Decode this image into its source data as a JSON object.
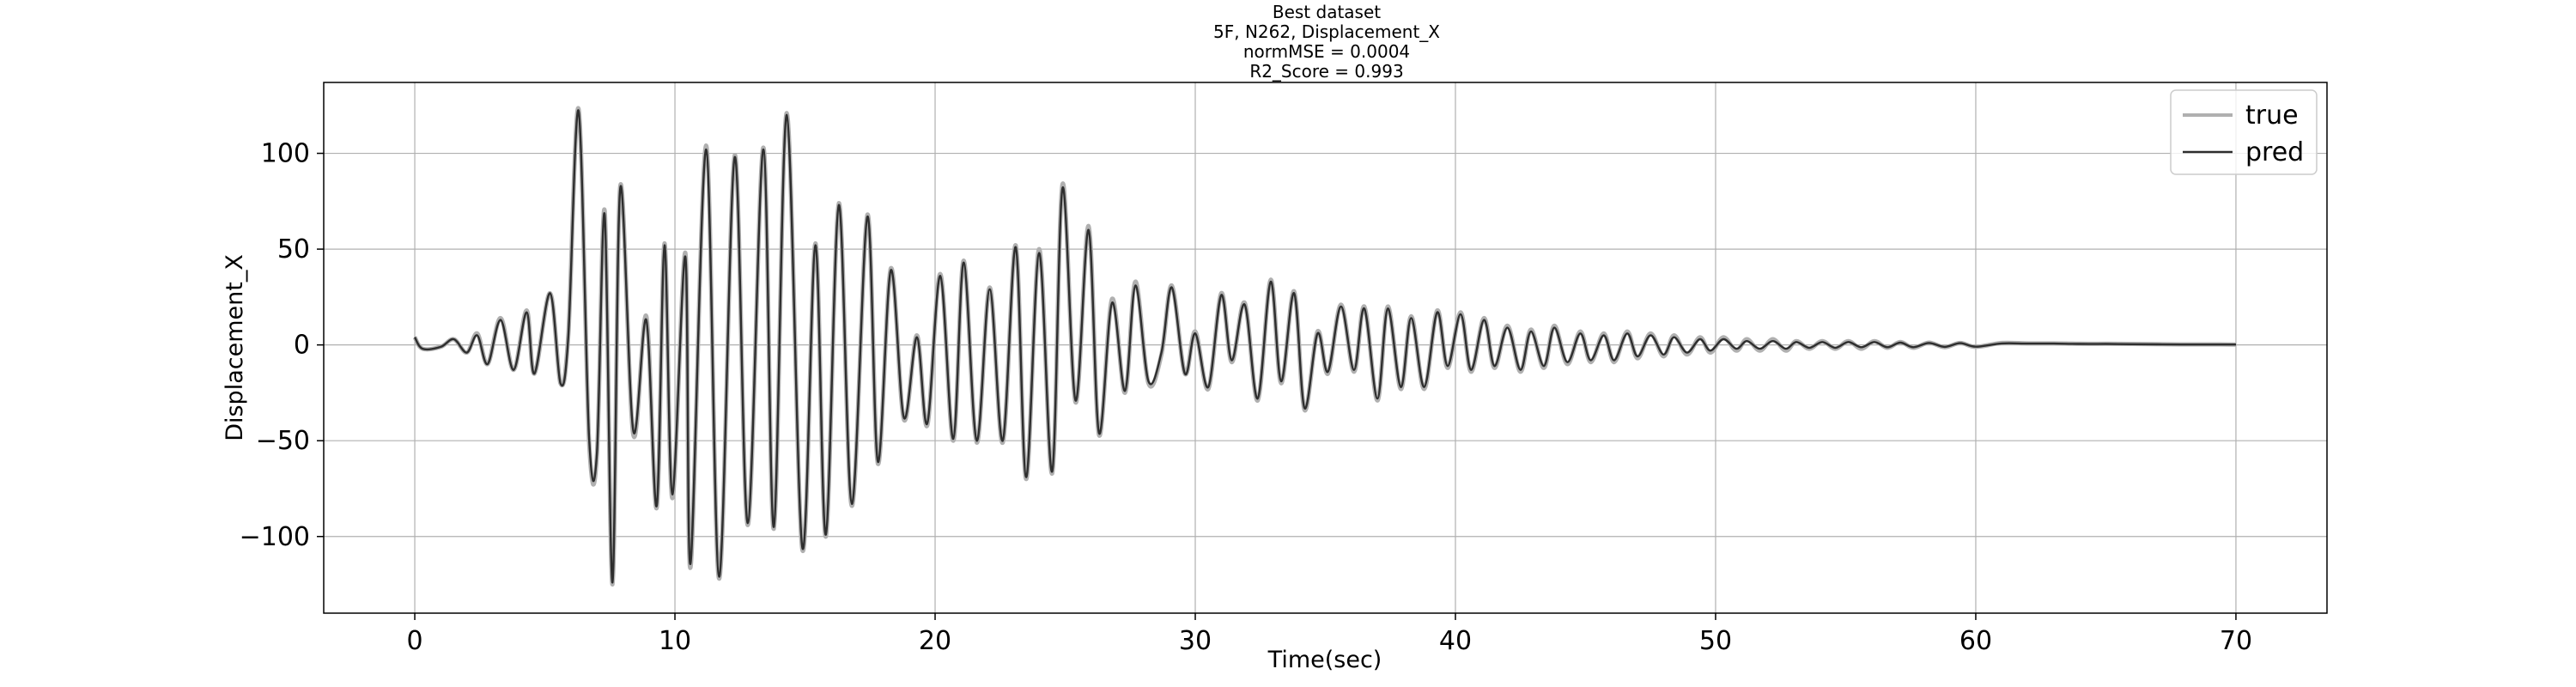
{
  "chart_data": {
    "type": "line",
    "title_lines": [
      "Best dataset",
      "5F, N262, Displacement_X",
      "normMSE = 0.0004",
      "R2_Score = 0.993"
    ],
    "xlabel": "Time(sec)",
    "ylabel": "Displacement_X",
    "xlim": [
      -3.5,
      73.5
    ],
    "ylim": [
      -140,
      137
    ],
    "xticks": [
      0,
      10,
      20,
      30,
      40,
      50,
      60,
      70
    ],
    "xtick_labels": [
      "0",
      "10",
      "20",
      "30",
      "40",
      "50",
      "60",
      "70"
    ],
    "yticks": [
      -100,
      -50,
      0,
      50,
      100
    ],
    "ytick_labels": [
      "−100",
      "−50",
      "0",
      "50",
      "100"
    ],
    "grid": true,
    "legend_position": "top-right",
    "series": [
      {
        "name": "true",
        "color": "#b0b0b0",
        "x": [
          0.0,
          0.3,
          1.0,
          1.5,
          2.0,
          2.4,
          2.8,
          3.3,
          3.8,
          4.3,
          4.6,
          5.2,
          5.6,
          5.9,
          6.3,
          6.7,
          7.0,
          7.3,
          7.6,
          7.9,
          8.4,
          8.9,
          9.3,
          9.6,
          9.9,
          10.4,
          10.6,
          11.2,
          11.7,
          12.3,
          12.8,
          13.4,
          13.8,
          14.3,
          14.9,
          15.4,
          15.8,
          16.3,
          16.8,
          17.4,
          17.8,
          18.3,
          18.8,
          19.3,
          19.7,
          20.2,
          20.7,
          21.1,
          21.6,
          22.1,
          22.6,
          23.1,
          23.5,
          24.0,
          24.5,
          24.9,
          25.4,
          25.9,
          26.3,
          26.8,
          27.3,
          27.7,
          28.2,
          28.7,
          29.1,
          29.6,
          30.0,
          30.5,
          31.0,
          31.4,
          31.9,
          32.4,
          32.9,
          33.3,
          33.8,
          34.2,
          34.7,
          35.1,
          35.6,
          36.1,
          36.5,
          37.0,
          37.4,
          37.9,
          38.3,
          38.8,
          39.3,
          39.7,
          40.2,
          40.6,
          41.1,
          41.5,
          42.0,
          42.5,
          42.9,
          43.4,
          43.8,
          44.3,
          44.8,
          45.2,
          45.7,
          46.1,
          46.6,
          47.0,
          47.5,
          48.0,
          48.4,
          48.9,
          49.4,
          49.8,
          50.3,
          50.8,
          51.2,
          51.7,
          52.2,
          52.7,
          53.1,
          53.6,
          54.1,
          54.6,
          55.1,
          55.6,
          56.1,
          56.6,
          57.1,
          57.6,
          58.2,
          58.8,
          59.4,
          60.0,
          61.0,
          62.0,
          63.0,
          64.0,
          65.0,
          66.0,
          67.0,
          68.0,
          69.0,
          70.0
        ],
        "values": [
          4,
          -2,
          -1,
          3,
          -4,
          6,
          -10,
          14,
          -13,
          18,
          -15,
          27,
          -20,
          5,
          123,
          -50,
          -58,
          70,
          -125,
          83,
          -47,
          15,
          -85,
          53,
          -80,
          48,
          -116,
          104,
          -122,
          99,
          -94,
          103,
          -96,
          121,
          -107,
          53,
          -100,
          74,
          -84,
          68,
          -62,
          40,
          -39,
          5,
          -42,
          37,
          -50,
          44,
          -51,
          30,
          -51,
          52,
          -70,
          50,
          -67,
          84,
          -30,
          62,
          -47,
          24,
          -25,
          33,
          -20,
          -5,
          31,
          -15,
          7,
          -23,
          27,
          -9,
          22,
          -29,
          34,
          -20,
          28,
          -34,
          7,
          -15,
          21,
          -14,
          20,
          -29,
          20,
          -23,
          15,
          -23,
          18,
          -12,
          17,
          -14,
          14,
          -12,
          10,
          -14,
          8,
          -12,
          10,
          -10,
          7,
          -9,
          6,
          -9,
          7,
          -7,
          6,
          -6,
          5,
          -5,
          4,
          -4,
          4,
          -3,
          3,
          -3,
          3,
          -3,
          2,
          -2,
          2,
          -2,
          2,
          -2,
          2,
          -1.5,
          1.5,
          -1.5,
          1.2,
          -1.2,
          1.0,
          -1.0,
          1,
          0.8,
          0.8,
          0.6,
          0.6,
          0.5,
          0.4,
          0.3,
          0.3,
          0.2
        ]
      },
      {
        "name": "pred",
        "color": "#2e2e2e",
        "x": [
          0.0,
          0.3,
          1.0,
          1.5,
          2.0,
          2.4,
          2.8,
          3.3,
          3.8,
          4.3,
          4.6,
          5.2,
          5.6,
          5.9,
          6.3,
          6.7,
          7.0,
          7.3,
          7.6,
          7.9,
          8.4,
          8.9,
          9.3,
          9.6,
          9.9,
          10.4,
          10.6,
          11.2,
          11.7,
          12.3,
          12.8,
          13.4,
          13.8,
          14.3,
          14.9,
          15.4,
          15.8,
          16.3,
          16.8,
          17.4,
          17.8,
          18.3,
          18.8,
          19.3,
          19.7,
          20.2,
          20.7,
          21.1,
          21.6,
          22.1,
          22.6,
          23.1,
          23.5,
          24.0,
          24.5,
          24.9,
          25.4,
          25.9,
          26.3,
          26.8,
          27.3,
          27.7,
          28.2,
          28.7,
          29.1,
          29.6,
          30.0,
          30.5,
          31.0,
          31.4,
          31.9,
          32.4,
          32.9,
          33.3,
          33.8,
          34.2,
          34.7,
          35.1,
          35.6,
          36.1,
          36.5,
          37.0,
          37.4,
          37.9,
          38.3,
          38.8,
          39.3,
          39.7,
          40.2,
          40.6,
          41.1,
          41.5,
          42.0,
          42.5,
          42.9,
          43.4,
          43.8,
          44.3,
          44.8,
          45.2,
          45.7,
          46.1,
          46.6,
          47.0,
          47.5,
          48.0,
          48.4,
          48.9,
          49.4,
          49.8,
          50.3,
          50.8,
          51.2,
          51.7,
          52.2,
          52.7,
          53.1,
          53.6,
          54.1,
          54.6,
          55.1,
          55.6,
          56.1,
          56.6,
          57.1,
          57.6,
          58.2,
          58.8,
          59.4,
          60.0,
          61.0,
          62.0,
          63.0,
          64.0,
          65.0,
          66.0,
          67.0,
          68.0,
          69.0,
          70.0
        ],
        "values": [
          4,
          -2,
          -1,
          3,
          -4,
          5,
          -10,
          13,
          -13,
          17,
          -15,
          27,
          -20,
          4,
          122,
          -48,
          -57,
          68,
          -124,
          82,
          -45,
          13,
          -84,
          52,
          -78,
          46,
          -114,
          102,
          -121,
          98,
          -93,
          102,
          -95,
          120,
          -106,
          52,
          -99,
          73,
          -83,
          67,
          -61,
          39,
          -38,
          4,
          -41,
          36,
          -49,
          43,
          -50,
          29,
          -50,
          51,
          -69,
          48,
          -66,
          82,
          -29,
          60,
          -46,
          22,
          -24,
          31,
          -19,
          -4,
          30,
          -15,
          6,
          -22,
          26,
          -8,
          21,
          -28,
          33,
          -19,
          27,
          -33,
          6,
          -14,
          20,
          -13,
          19,
          -28,
          19,
          -22,
          14,
          -22,
          17,
          -11,
          16,
          -13,
          13,
          -11,
          9,
          -13,
          7,
          -11,
          9,
          -9,
          6,
          -8,
          5,
          -8,
          6,
          -6,
          5,
          -5,
          4,
          -4,
          3,
          -3,
          3,
          -2,
          2,
          -2,
          2,
          -2,
          1.5,
          -1.5,
          1.5,
          -1.5,
          1.5,
          -1.2,
          1.5,
          -1.2,
          1.2,
          -1.2,
          1.0,
          -1.0,
          0.9,
          -0.9,
          0.8,
          0.7,
          0.7,
          0.5,
          0.5,
          0.4,
          0.3,
          0.2,
          0.2,
          0.2
        ]
      }
    ]
  }
}
